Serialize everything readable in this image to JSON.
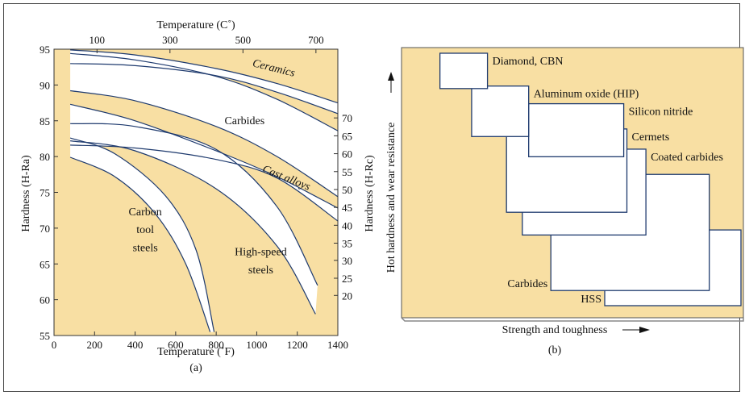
{
  "colors": {
    "panel_fill": "#f8dfa3",
    "curve_stroke": "#1e3a6e",
    "band_fill": "#ffffff",
    "axis": "#333333"
  },
  "chart_data": [
    {
      "type": "line",
      "caption": "(a)",
      "xlabel": "Temperature (˚F)",
      "ylabel": "Hardness (H-Ra)",
      "top_axis_label": "Temperature (C˚)",
      "right_axis_label": "Hardness (H-Rc)",
      "xlim": [
        0,
        1400
      ],
      "ylim": [
        55,
        95
      ],
      "x_ticks": [
        0,
        200,
        400,
        600,
        800,
        1000,
        1200,
        1400
      ],
      "y_ticks": [
        55,
        60,
        65,
        70,
        75,
        80,
        85,
        90,
        95
      ],
      "top_ticks": [
        {
          "label": "100",
          "x_f": 212
        },
        {
          "label": "300",
          "x_f": 572
        },
        {
          "label": "500",
          "x_f": 932
        },
        {
          "label": "700",
          "x_f": 1292
        }
      ],
      "right_ticks": [
        {
          "label": "20",
          "y_ra": 60.6
        },
        {
          "label": "25",
          "y_ra": 63.0
        },
        {
          "label": "30",
          "y_ra": 65.5
        },
        {
          "label": "35",
          "y_ra": 67.9
        },
        {
          "label": "40",
          "y_ra": 70.4
        },
        {
          "label": "45",
          "y_ra": 72.9
        },
        {
          "label": "50",
          "y_ra": 75.4
        },
        {
          "label": "55",
          "y_ra": 77.9
        },
        {
          "label": "60",
          "y_ra": 80.4
        },
        {
          "label": "65",
          "y_ra": 82.9
        },
        {
          "label": "70",
          "y_ra": 85.4
        }
      ],
      "bands": [
        {
          "name": "Ceramics",
          "upper": {
            "x": [
              80,
              400,
              800,
              1100,
              1400
            ],
            "y": [
              94.9,
              94.2,
              92.3,
              90.2,
              87.5
            ]
          },
          "lower": {
            "x": [
              80,
              400,
              800,
              1100,
              1400
            ],
            "y": [
              93.0,
              92.7,
              91.3,
              89.0,
              86.0
            ]
          }
        },
        {
          "name": "Carbides",
          "upper": {
            "x": [
              80,
              400,
              800,
              1100,
              1400
            ],
            "y": [
              94.4,
              93.5,
              91.2,
              88.0,
              83.6
            ]
          },
          "lower": {
            "x": [
              80,
              400,
              800,
              1100,
              1400
            ],
            "y": [
              89.2,
              87.8,
              84.2,
              80.0,
              74.4
            ]
          }
        },
        {
          "name": "Cast alloys",
          "upper": {
            "x": [
              80,
              400,
              800,
              1100,
              1400
            ],
            "y": [
              87.3,
              85.0,
              80.8,
              77.2,
              72.8
            ]
          },
          "lower": {
            "x": [
              80,
              400,
              800,
              1100,
              1400
            ],
            "y": [
              81.6,
              81.2,
              79.6,
              77.0,
              71.0
            ]
          }
        },
        {
          "name": "High-speed steels",
          "upper": {
            "x": [
              80,
              400,
              800,
              1100,
              1300
            ],
            "y": [
              84.6,
              84.2,
              81.0,
              73.0,
              62.0
            ]
          },
          "lower": {
            "x": [
              80,
              400,
              800,
              1100,
              1290
            ],
            "y": [
              82.2,
              80.8,
              75.5,
              67.5,
              58.0
            ]
          }
        },
        {
          "name": "Carbon tool steels",
          "upper": {
            "x": [
              80,
              300,
              550,
              700,
              790
            ],
            "y": [
              82.6,
              80.4,
              74.5,
              67.0,
              55.5
            ]
          },
          "lower": {
            "x": [
              80,
              300,
              500,
              650,
              770
            ],
            "y": [
              79.9,
              77.2,
              72.0,
              65.0,
              55.5
            ]
          }
        }
      ],
      "labels": [
        {
          "text": "Ceramics",
          "x": 1080,
          "y": 91.9,
          "rotate": 14,
          "italic": true
        },
        {
          "text": "Carbides",
          "x": 940,
          "y": 84.5,
          "rotate": 0,
          "italic": false
        },
        {
          "text": "Cast alloys",
          "x": 1140,
          "y": 76.6,
          "rotate": 22,
          "italic": true
        },
        {
          "text": "Carbon",
          "x": 450,
          "y": 71.8,
          "rotate": 0,
          "italic": false
        },
        {
          "text": "tool",
          "x": 450,
          "y": 69.3,
          "rotate": 0,
          "italic": false
        },
        {
          "text": "steels",
          "x": 450,
          "y": 66.8,
          "rotate": 0,
          "italic": false
        },
        {
          "text": "High-speed",
          "x": 1020,
          "y": 66.2,
          "rotate": 0,
          "italic": false
        },
        {
          "text": "steels",
          "x": 1020,
          "y": 63.7,
          "rotate": 0,
          "italic": false
        }
      ]
    },
    {
      "type": "diagram",
      "caption": "(b)",
      "xlabel": "Strength and toughness",
      "ylabel": "Hot hardness and wear resistance",
      "boxes": [
        {
          "label": "Diamond, CBN",
          "x": [
            0.05,
            0.2
          ],
          "y": [
            0.86,
            1.0
          ],
          "label_pos": "top-right"
        },
        {
          "label": "Aluminum oxide (HIP)",
          "x": [
            0.15,
            0.33
          ],
          "y": [
            0.67,
            0.87
          ],
          "label_pos": "top-right"
        },
        {
          "label": "Silicon nitride",
          "x": [
            0.33,
            0.63
          ],
          "y": [
            0.59,
            0.8
          ],
          "label_pos": "top-right"
        },
        {
          "label": "Cermets",
          "x": [
            0.26,
            0.64
          ],
          "y": [
            0.37,
            0.7
          ],
          "label_pos": "top-right"
        },
        {
          "label": "Coated carbides",
          "x": [
            0.31,
            0.7
          ],
          "y": [
            0.28,
            0.62
          ],
          "label_pos": "top-right"
        },
        {
          "label": "Carbides",
          "x": [
            0.4,
            0.9
          ],
          "y": [
            0.06,
            0.52
          ],
          "label_pos": "bottom-left"
        },
        {
          "label": "HSS",
          "x": [
            0.57,
            1.0
          ],
          "y": [
            0.0,
            0.3
          ],
          "label_pos": "bottom-left"
        }
      ]
    }
  ]
}
